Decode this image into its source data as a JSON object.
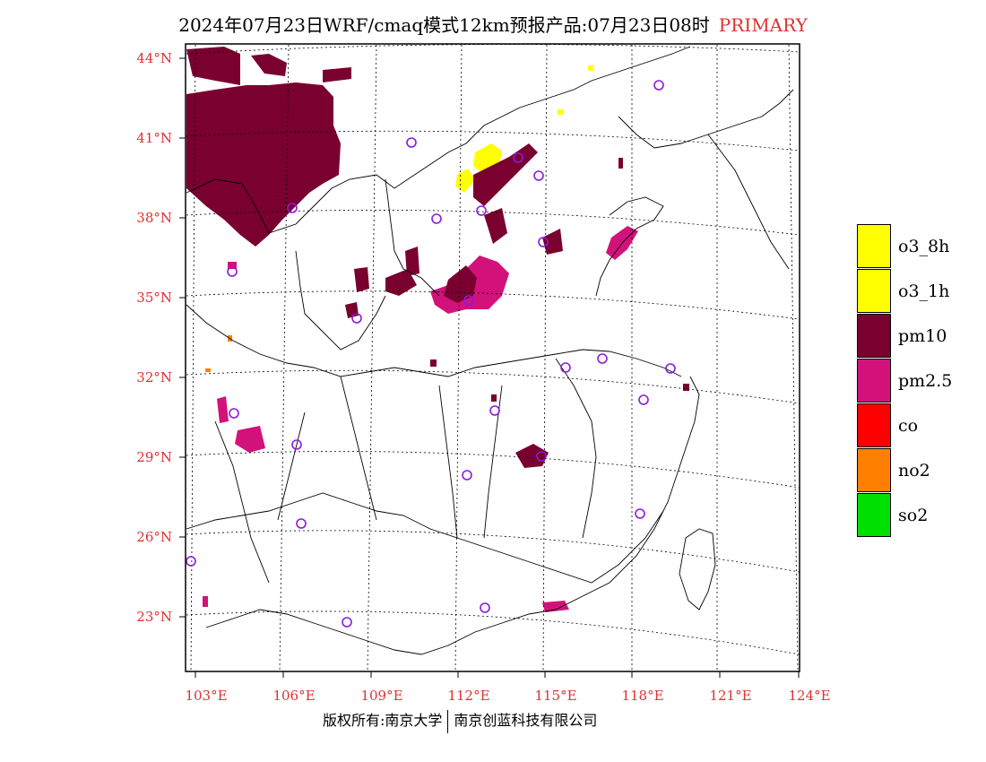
{
  "title": {
    "main": "2024年07月23日WRF/cmaq模式12km预报产品:07月23日08时",
    "tag": "PRIMARY"
  },
  "axes": {
    "lat_labels": [
      "44°N",
      "41°N",
      "38°N",
      "35°N",
      "32°N",
      "29°N",
      "26°N",
      "23°N"
    ],
    "lon_labels": [
      "103°E",
      "106°E",
      "109°E",
      "112°E",
      "115°E",
      "118°E",
      "121°E",
      "124°E"
    ]
  },
  "legend": [
    {
      "label": "o3_8h",
      "color": "#ffff00"
    },
    {
      "label": "o3_1h",
      "color": "#ffff00"
    },
    {
      "label": "pm10",
      "color": "#7a0030"
    },
    {
      "label": "pm2.5",
      "color": "#d2127a"
    },
    {
      "label": "co",
      "color": "#ff0000"
    },
    {
      "label": "no2",
      "color": "#ff8000"
    },
    {
      "label": "so2",
      "color": "#00e000"
    }
  ],
  "footer": {
    "left": "版权所有:南京大学",
    "right": "南京创蓝科技有限公司"
  }
}
